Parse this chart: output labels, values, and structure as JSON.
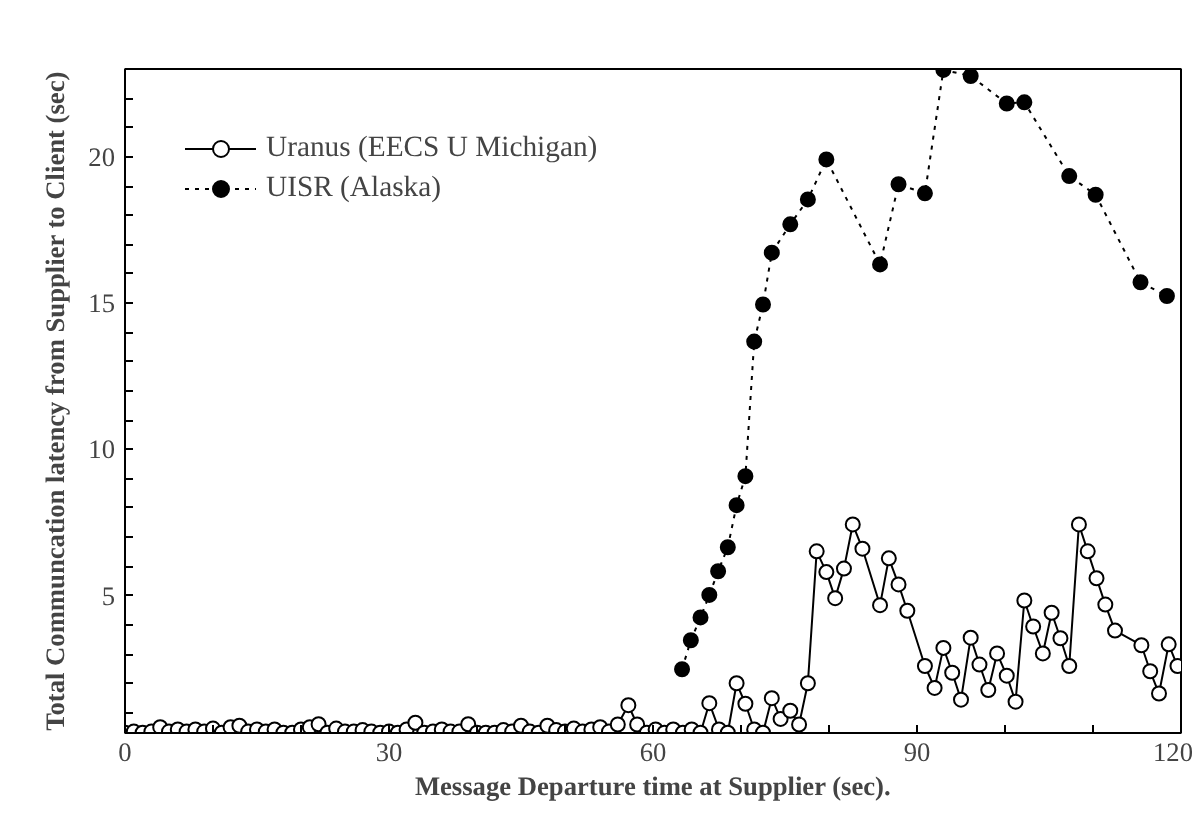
{
  "chart_data": {
    "type": "line",
    "xlabel": "Message Departure time at Supplier (sec).",
    "ylabel": "Total Communcation latency from Supplier to Client (sec)",
    "xlim": [
      0,
      120
    ],
    "ylim": [
      0.3,
      23
    ],
    "xticks": [
      0,
      {
        "value": 10,
        "label": null
      },
      {
        "value": 20,
        "label": null
      },
      30,
      {
        "value": 40,
        "label": null
      },
      {
        "value": 50,
        "label": null
      },
      60,
      {
        "value": 70,
        "label": null
      },
      {
        "value": 80,
        "label": null
      },
      90,
      {
        "value": 100,
        "label": null
      },
      {
        "value": 110,
        "label": null
      },
      120
    ],
    "yticks": [
      {
        "value": 1,
        "label": null
      },
      {
        "value": 2,
        "label": null
      },
      {
        "value": 3,
        "label": null
      },
      {
        "value": 4,
        "label": null
      },
      5,
      {
        "value": 6,
        "label": null
      },
      {
        "value": 7,
        "label": null
      },
      {
        "value": 8,
        "label": null
      },
      {
        "value": 9,
        "label": null
      },
      10,
      {
        "value": 11,
        "label": null
      },
      {
        "value": 12,
        "label": null
      },
      {
        "value": 13,
        "label": null
      },
      {
        "value": 14,
        "label": null
      },
      15,
      {
        "value": 16,
        "label": null
      },
      {
        "value": 17,
        "label": null
      },
      {
        "value": 18,
        "label": null
      },
      {
        "value": 19,
        "label": null
      },
      20,
      {
        "value": 21,
        "label": null
      },
      {
        "value": 22,
        "label": null
      }
    ],
    "grid": false,
    "legend": "top left",
    "marker": "circle",
    "series": [
      {
        "name": "Uranus (EECS U Michigan)",
        "color": "#000000",
        "line_style": "solid",
        "x": [
          0,
          1,
          2,
          3,
          4,
          5,
          6,
          7,
          8,
          9,
          10,
          11,
          12,
          13,
          14,
          15,
          16,
          17,
          18,
          19,
          20,
          21,
          22,
          23,
          24,
          25,
          26,
          27,
          28,
          29,
          30,
          31,
          32,
          33,
          34,
          35,
          36,
          37,
          38,
          39,
          40,
          41,
          42,
          43,
          44,
          45,
          46,
          47,
          48,
          49,
          50,
          51,
          52,
          53,
          54,
          55,
          56,
          57.2,
          58.2,
          59.3,
          60.3,
          61.3,
          62.3,
          63.4,
          64.4,
          65.4,
          66.4,
          67.5,
          68.5,
          69.5,
          70.5,
          71.5,
          72.5,
          73.5,
          74.5,
          75.6,
          76.6,
          77.6,
          78.6,
          79.7,
          80.7,
          81.7,
          82.7,
          83.8,
          85.8,
          86.8,
          87.9,
          88.9,
          90.9,
          92.0,
          93.0,
          94.0,
          95.0,
          96.1,
          97.1,
          98.1,
          99.1,
          100.2,
          101.2,
          102.2,
          103.2,
          104.3,
          105.3,
          106.3,
          107.3,
          108.4,
          109.4,
          110.4,
          111.4,
          112.5,
          115.5,
          116.5,
          117.5,
          118.6,
          119.6
        ],
        "values": [
          0.31,
          0.35,
          0.31,
          0.35,
          0.5,
          0.35,
          0.42,
          0.35,
          0.42,
          0.35,
          0.45,
          0.31,
          0.5,
          0.55,
          0.35,
          0.42,
          0.35,
          0.42,
          0.31,
          0.31,
          0.42,
          0.5,
          0.6,
          0.31,
          0.45,
          0.35,
          0.35,
          0.4,
          0.35,
          0.31,
          0.35,
          0.31,
          0.42,
          0.65,
          0.31,
          0.35,
          0.42,
          0.35,
          0.35,
          0.6,
          0.31,
          0.31,
          0.31,
          0.4,
          0.35,
          0.55,
          0.35,
          0.31,
          0.55,
          0.4,
          0.35,
          0.45,
          0.35,
          0.42,
          0.5,
          0.35,
          0.59,
          1.25,
          0.59,
          0.31,
          0.42,
          0.31,
          0.42,
          0.31,
          0.42,
          0.31,
          1.32,
          0.42,
          0.31,
          2.0,
          1.3,
          0.42,
          0.31,
          1.49,
          0.78,
          1.06,
          0.59,
          2.0,
          6.51,
          5.8,
          4.91,
          5.92,
          7.43,
          6.6,
          4.67,
          6.27,
          5.38,
          4.48,
          2.59,
          1.84,
          3.21,
          2.36,
          1.44,
          3.56,
          2.64,
          1.77,
          3.02,
          2.26,
          1.37,
          4.83,
          3.94,
          3.02,
          4.41,
          3.54,
          2.59,
          7.43,
          6.51,
          5.59,
          4.69,
          3.8,
          3.3,
          2.41,
          1.65,
          3.33,
          2.59
        ]
      },
      {
        "name": "UISR (Alaska)",
        "color": "#000000",
        "line_style": "dotted",
        "x": [
          63.3,
          64.3,
          65.4,
          66.4,
          67.4,
          68.5,
          69.5,
          70.5,
          71.5,
          72.5,
          73.5,
          75.6,
          77.6,
          79.7,
          85.8,
          87.9,
          90.9,
          93.0,
          96.1,
          100.2,
          102.2,
          107.3,
          110.3,
          115.4,
          118.4
        ],
        "values": [
          2.48,
          3.47,
          4.25,
          5.02,
          5.83,
          6.65,
          8.09,
          9.08,
          13.68,
          14.95,
          16.72,
          17.69,
          18.54,
          19.91,
          16.32,
          19.06,
          18.75,
          22.97,
          22.76,
          21.82,
          21.86,
          19.34,
          18.7,
          15.71,
          15.24
        ]
      }
    ]
  }
}
